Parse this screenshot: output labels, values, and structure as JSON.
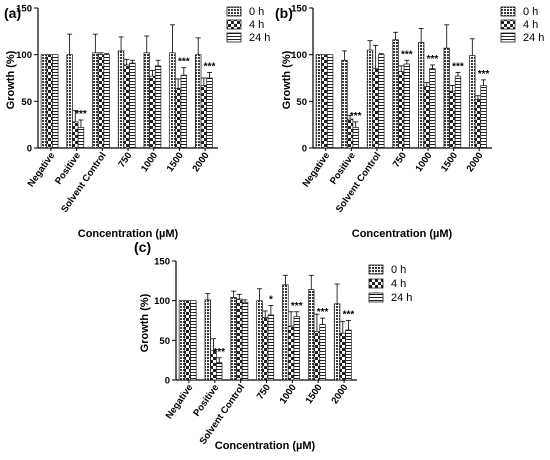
{
  "figure": {
    "legend": [
      "0 h",
      "4 h",
      "24 h"
    ],
    "colors": {
      "axis": "#000000",
      "bar_stroke": "#1a1a1a",
      "pattern": "#333333"
    },
    "patterns": [
      "dense-hatch",
      "checker",
      "horizontal-lines"
    ]
  },
  "chart_data": [
    {
      "panel_label": "(a)",
      "type": "bar",
      "xlabel": "Concentration (µM)",
      "ylabel": "Growth (%)",
      "ylim": [
        0,
        150
      ],
      "yticks": [
        0,
        50,
        100,
        150
      ],
      "categories": [
        "Negative",
        "Positive",
        "Solvent Control",
        "750",
        "1000",
        "1500",
        "2000"
      ],
      "series": [
        {
          "name": "0 h",
          "values": [
            100,
            100,
            102,
            104,
            102,
            102,
            100
          ],
          "errors": [
            0,
            22,
            20,
            15,
            18,
            30,
            18
          ]
        },
        {
          "name": "4 h",
          "values": [
            100,
            28,
            100,
            89,
            77,
            64,
            67
          ],
          "errors": [
            0,
            12,
            2,
            6,
            6,
            10,
            8
          ]
        },
        {
          "name": "24 h",
          "values": [
            100,
            22,
            100,
            91,
            88,
            78,
            75
          ],
          "errors": [
            0,
            8,
            1,
            3,
            6,
            8,
            6
          ]
        }
      ],
      "annotations": [
        "",
        "***",
        "",
        "",
        "",
        "***",
        "***"
      ]
    },
    {
      "panel_label": "(b)",
      "type": "bar",
      "xlabel": "Concentration (µM)",
      "ylabel": "Growth (%)",
      "ylim": [
        0,
        150
      ],
      "yticks": [
        0,
        50,
        100,
        150
      ],
      "categories": [
        "Negative",
        "Positive",
        "Solvent Control",
        "750",
        "1000",
        "1500",
        "2000"
      ],
      "series": [
        {
          "name": "0 h",
          "values": [
            100,
            94,
            105,
            116,
            113,
            107,
            99
          ],
          "errors": [
            0,
            10,
            10,
            8,
            15,
            25,
            18
          ]
        },
        {
          "name": "4 h",
          "values": [
            100,
            31,
            85,
            82,
            66,
            61,
            52
          ],
          "errors": [
            0,
            4,
            25,
            6,
            4,
            6,
            4
          ]
        },
        {
          "name": "24 h",
          "values": [
            100,
            22,
            100,
            90,
            85,
            77,
            67
          ],
          "errors": [
            0,
            6,
            1,
            4,
            4,
            4,
            6
          ]
        }
      ],
      "annotations": [
        "",
        "***",
        "",
        "***",
        "***",
        "***",
        "***"
      ]
    },
    {
      "panel_label": "(c)",
      "type": "bar",
      "xlabel": "Concentration (µM)",
      "ylabel": "Growth (%)",
      "ylim": [
        0,
        150
      ],
      "yticks": [
        0,
        50,
        100,
        150
      ],
      "categories": [
        "Negative",
        "Positive",
        "Solvent Control",
        "750",
        "1000",
        "1500",
        "2000"
      ],
      "series": [
        {
          "name": "0 h",
          "values": [
            100,
            101,
            104,
            100,
            120,
            114,
            96
          ],
          "errors": [
            0,
            8,
            8,
            15,
            12,
            18,
            25
          ]
        },
        {
          "name": "4 h",
          "values": [
            100,
            37,
            102,
            79,
            68,
            61,
            59
          ],
          "errors": [
            0,
            15,
            6,
            8,
            18,
            22,
            15
          ]
        },
        {
          "name": "24 h",
          "values": [
            100,
            22,
            98,
            82,
            80,
            70,
            63
          ],
          "errors": [
            0,
            6,
            3,
            12,
            6,
            8,
            12
          ]
        }
      ],
      "annotations": [
        "",
        "***",
        "",
        "*",
        "***",
        "***",
        "***"
      ]
    }
  ]
}
